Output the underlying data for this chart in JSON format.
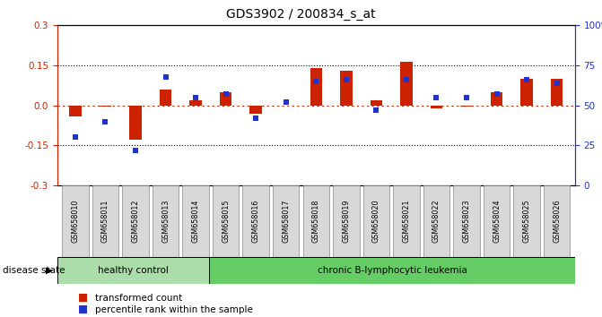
{
  "title": "GDS3902 / 200834_s_at",
  "samples": [
    "GSM658010",
    "GSM658011",
    "GSM658012",
    "GSM658013",
    "GSM658014",
    "GSM658015",
    "GSM658016",
    "GSM658017",
    "GSM658018",
    "GSM658019",
    "GSM658020",
    "GSM658021",
    "GSM658022",
    "GSM658023",
    "GSM658024",
    "GSM658025",
    "GSM658026"
  ],
  "red_values": [
    -0.04,
    -0.005,
    -0.13,
    0.06,
    0.02,
    0.05,
    -0.03,
    0.0,
    0.14,
    0.13,
    0.02,
    0.165,
    -0.01,
    -0.005,
    0.05,
    0.1,
    0.1
  ],
  "blue_values": [
    30,
    40,
    22,
    68,
    55,
    57,
    42,
    52,
    65,
    66,
    47,
    66,
    55,
    55,
    57,
    66,
    64
  ],
  "healthy_count": 5,
  "group_labels": [
    "healthy control",
    "chronic B-lymphocytic leukemia"
  ],
  "disease_state_label": "disease state",
  "legend_red": "transformed count",
  "legend_blue": "percentile rank within the sample",
  "ylim_left": [
    -0.3,
    0.3
  ],
  "ylim_right": [
    0,
    100
  ],
  "yticks_left": [
    -0.3,
    -0.15,
    0.0,
    0.15,
    0.3
  ],
  "yticks_right": [
    0,
    25,
    50,
    75,
    100
  ],
  "bar_color_red": "#CC2200",
  "bar_color_blue": "#2233CC",
  "bg_color": "#FFFFFF",
  "hline_color": "#CC2200",
  "dotted_color": "#000000",
  "healthy_color": "#AADDAA",
  "leukemia_color": "#66CC66"
}
